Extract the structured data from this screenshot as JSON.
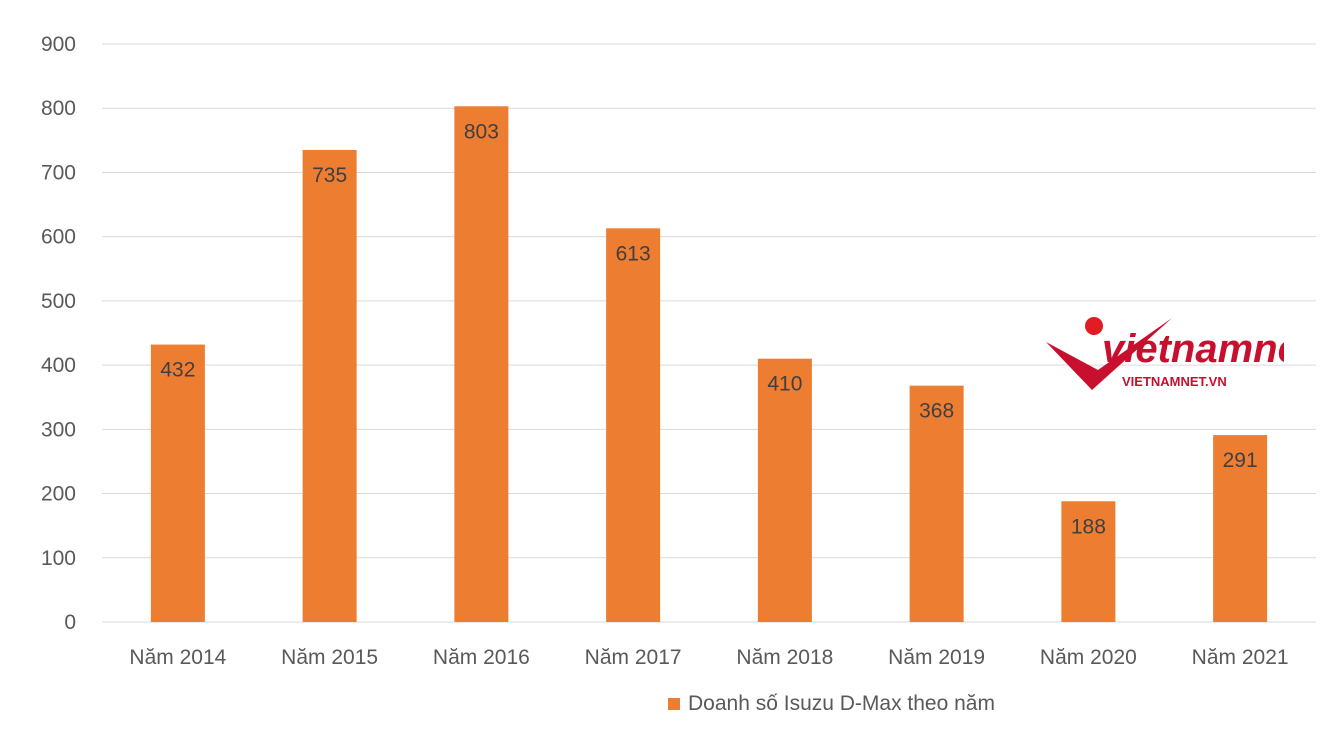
{
  "chart_data": {
    "type": "bar",
    "categories": [
      "Năm 2014",
      "Năm 2015",
      "Năm 2016",
      "Năm 2017",
      "Năm 2018",
      "Năm 2019",
      "Năm 2020",
      "Năm 2021"
    ],
    "series": [
      {
        "name": "Doanh số Isuzu D-Max theo năm",
        "values": [
          432,
          735,
          803,
          613,
          410,
          368,
          188,
          291
        ]
      }
    ],
    "ylim": [
      0,
      900
    ],
    "yticks": [
      0,
      100,
      200,
      300,
      400,
      500,
      600,
      700,
      800,
      900
    ],
    "grid": true,
    "legend_position": "bottom",
    "colors": {
      "bar": "#ED7D31",
      "grid": "#D9D9D9",
      "axis_text": "#595959"
    }
  },
  "watermark": {
    "wordmark": "vietnamnet",
    "url_text": "VIETNAMNET.VN",
    "colors": {
      "red": "#C8102E",
      "dot": "#E31B23"
    }
  }
}
